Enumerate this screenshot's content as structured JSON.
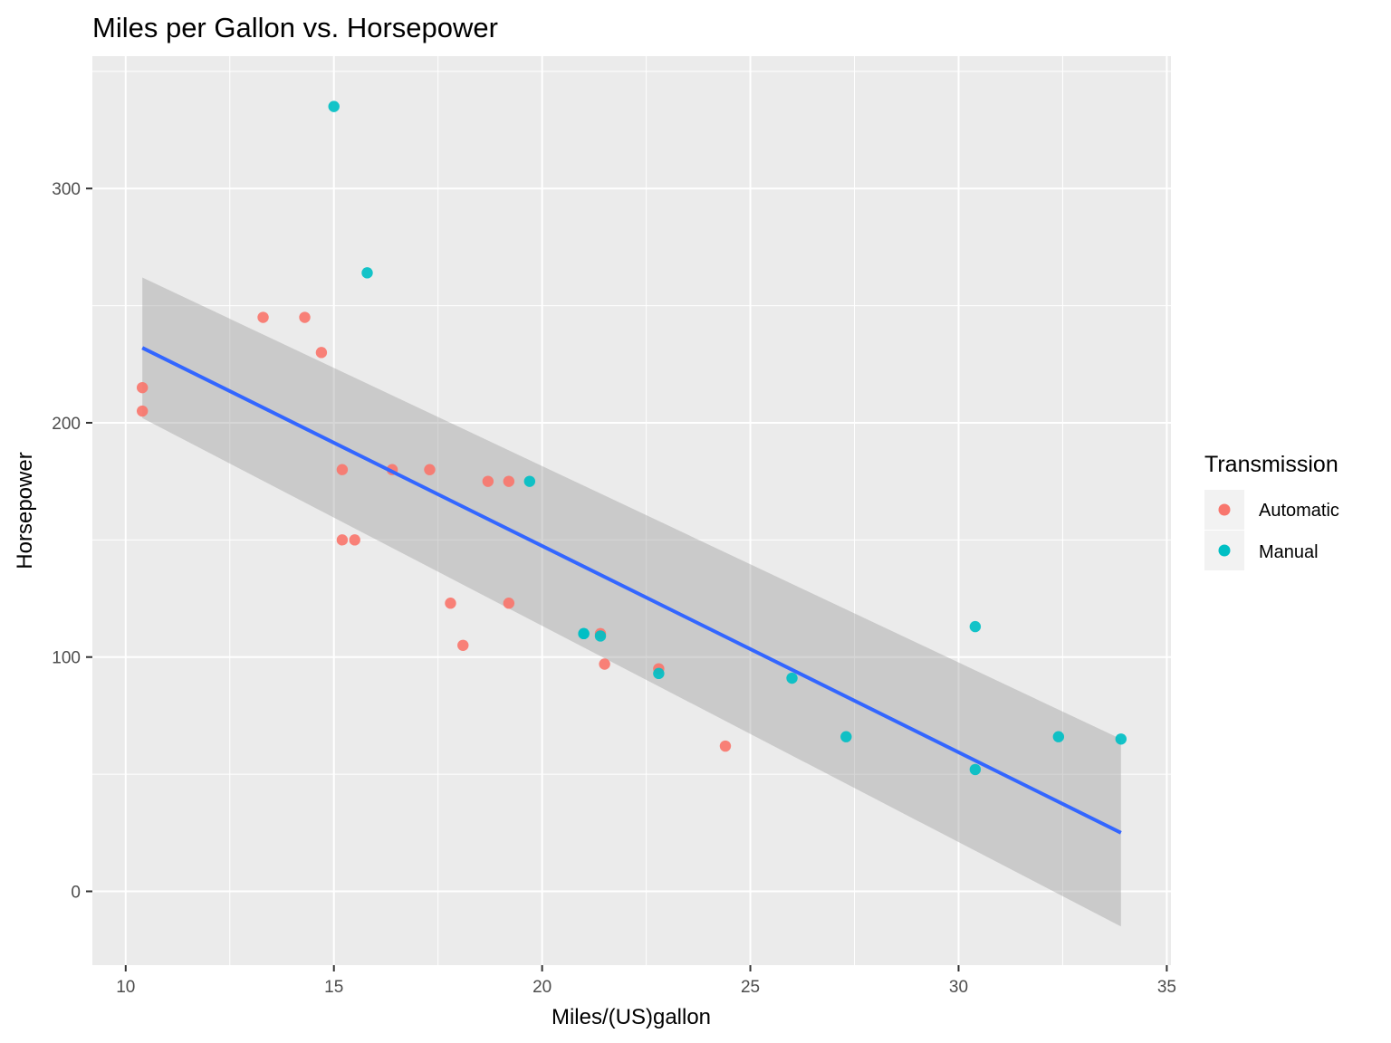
{
  "chart_data": {
    "type": "scatter",
    "title": "Miles per Gallon vs. Horsepower",
    "xlabel": "Miles/(US)gallon",
    "ylabel": "Horsepower",
    "xlim": [
      9.2,
      35.1
    ],
    "ylim": [
      -31.5,
      356.5
    ],
    "x_ticks": [
      10,
      15,
      20,
      25,
      30,
      35
    ],
    "y_ticks": [
      0,
      100,
      200,
      300
    ],
    "grid": true,
    "legend_position": "right",
    "legend": {
      "title": "Transmission",
      "entries": [
        {
          "name": "Automatic",
          "color": "#F8766D"
        },
        {
          "name": "Manual",
          "color": "#00BFC4"
        }
      ]
    },
    "series": [
      {
        "name": "Automatic",
        "color": "#F8766D",
        "points": [
          {
            "x": 21.4,
            "y": 110
          },
          {
            "x": 18.7,
            "y": 175
          },
          {
            "x": 18.1,
            "y": 105
          },
          {
            "x": 14.3,
            "y": 245
          },
          {
            "x": 24.4,
            "y": 62
          },
          {
            "x": 22.8,
            "y": 95
          },
          {
            "x": 19.2,
            "y": 123
          },
          {
            "x": 17.8,
            "y": 123
          },
          {
            "x": 16.4,
            "y": 180
          },
          {
            "x": 17.3,
            "y": 180
          },
          {
            "x": 15.2,
            "y": 180
          },
          {
            "x": 10.4,
            "y": 205
          },
          {
            "x": 10.4,
            "y": 215
          },
          {
            "x": 14.7,
            "y": 230
          },
          {
            "x": 21.5,
            "y": 97
          },
          {
            "x": 15.5,
            "y": 150
          },
          {
            "x": 15.2,
            "y": 150
          },
          {
            "x": 13.3,
            "y": 245
          },
          {
            "x": 19.2,
            "y": 175
          }
        ]
      },
      {
        "name": "Manual",
        "color": "#00BFC4",
        "points": [
          {
            "x": 21.0,
            "y": 110
          },
          {
            "x": 21.0,
            "y": 110
          },
          {
            "x": 22.8,
            "y": 93
          },
          {
            "x": 32.4,
            "y": 66
          },
          {
            "x": 30.4,
            "y": 52
          },
          {
            "x": 33.9,
            "y": 65
          },
          {
            "x": 27.3,
            "y": 66
          },
          {
            "x": 26.0,
            "y": 91
          },
          {
            "x": 30.4,
            "y": 113
          },
          {
            "x": 15.8,
            "y": 264
          },
          {
            "x": 19.7,
            "y": 175
          },
          {
            "x": 15.0,
            "y": 335
          },
          {
            "x": 21.4,
            "y": 109
          }
        ]
      }
    ],
    "smooth": {
      "method": "lm",
      "color": "#3366FF",
      "band_color": "#999999",
      "x_range": [
        10.4,
        33.9
      ],
      "line": [
        232,
        25
      ],
      "upper": [
        262,
        65
      ],
      "lower": [
        202,
        -15
      ]
    }
  }
}
